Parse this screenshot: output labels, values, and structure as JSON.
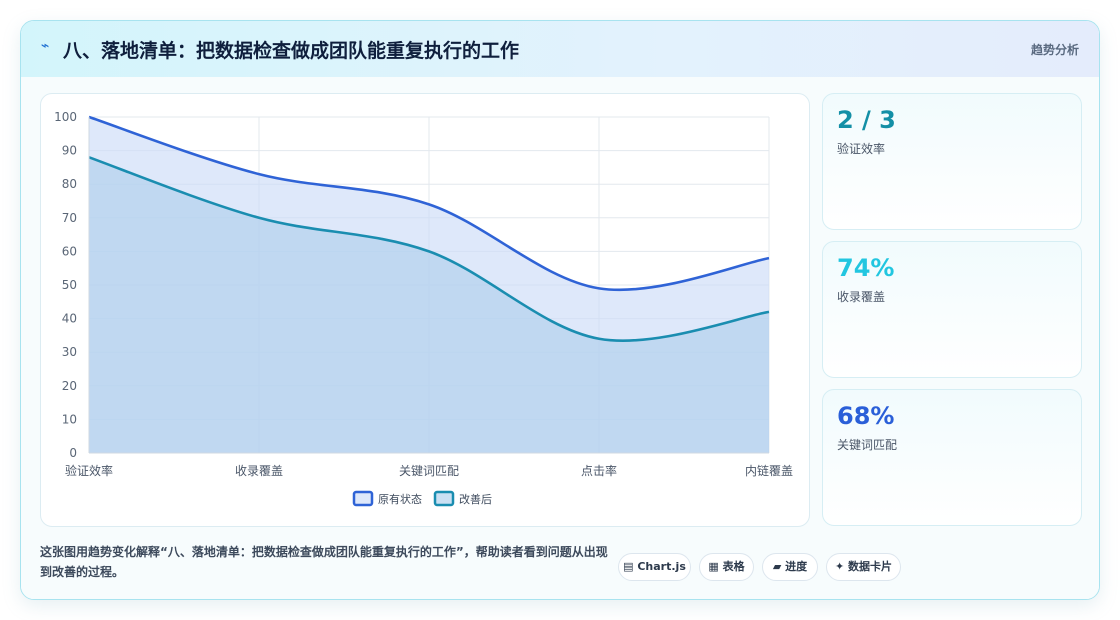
{
  "header": {
    "icon": "lightning-icon",
    "title": "八、落地清单：把数据检查做成团队能重复执行的工作",
    "tag": "趋势分析"
  },
  "colors": {
    "series_original": "#2f63d6",
    "series_improved": "#1a8db0",
    "stat1": "#138fa6",
    "stat2": "#22c6e0",
    "stat3": "#2a5fd8"
  },
  "chart_data": {
    "type": "area",
    "categories": [
      "验证效率",
      "收录覆盖",
      "关键词匹配",
      "点击率",
      "内链覆盖"
    ],
    "series": [
      {
        "name": "原有状态",
        "values": [
          100,
          83,
          74,
          49,
          58
        ]
      },
      {
        "name": "改善后",
        "values": [
          88,
          70,
          60,
          34,
          42
        ]
      }
    ],
    "yticks": [
      "0",
      "10",
      "20",
      "30",
      "40",
      "50",
      "60",
      "70",
      "80",
      "90",
      "100"
    ],
    "ylim": [
      0,
      100
    ],
    "grid": true,
    "legend": "bottom"
  },
  "stats": [
    {
      "value": "2 / 3",
      "label": "验证效率"
    },
    {
      "value": "74%",
      "label": "收录覆盖"
    },
    {
      "value": "68%",
      "label": "关键词匹配"
    }
  ],
  "footer": {
    "text": "这张图用趋势变化解释“八、落地清单：把数据检查做成团队能重复执行的工作”，帮助读者看到问题从出现到改善的过程。",
    "chips": [
      {
        "icon": "file-icon",
        "glyph": "▤",
        "label": "Chart.js"
      },
      {
        "icon": "table-icon",
        "glyph": "▦",
        "label": "表格"
      },
      {
        "icon": "progress-icon",
        "glyph": "▰",
        "label": "进度"
      },
      {
        "icon": "sparkle-icon",
        "glyph": "✦",
        "label": "数据卡片"
      }
    ]
  }
}
